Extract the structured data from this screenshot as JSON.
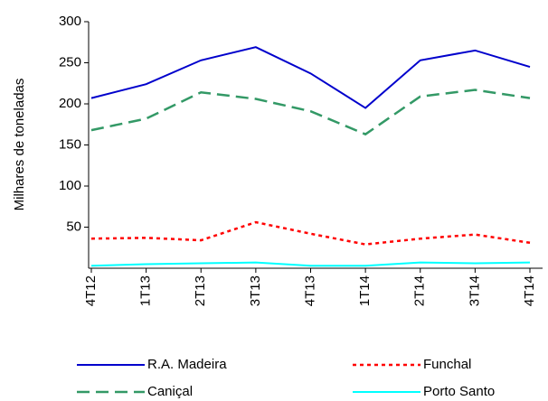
{
  "chart_data": {
    "type": "line",
    "y_label": "Milhares de toneladas",
    "categories": [
      "4T12",
      "1T13",
      "2T13",
      "3T13",
      "4T13",
      "1T14",
      "2T14",
      "3T14",
      "4T14"
    ],
    "series": [
      {
        "name": "R.A. Madeira",
        "color": "#0000cc",
        "dash": "solid",
        "values": [
          207,
          224,
          253,
          269,
          237,
          195,
          253,
          265,
          245
        ]
      },
      {
        "name": "Funchal",
        "color": "#ff0000",
        "dash": "dotted",
        "values": [
          36,
          37,
          34,
          56,
          42,
          29,
          36,
          41,
          31
        ]
      },
      {
        "name": "Caniçal",
        "color": "#339966",
        "dash": "dashed",
        "values": [
          168,
          182,
          214,
          206,
          191,
          163,
          209,
          217,
          207
        ]
      },
      {
        "name": "Porto Santo",
        "color": "#00ffff",
        "dash": "solid",
        "values": [
          3,
          5,
          6,
          7,
          3,
          3,
          7,
          6,
          7
        ]
      }
    ],
    "ylim": [
      0,
      300
    ],
    "yticks": [
      50,
      100,
      150,
      200,
      250,
      300
    ]
  }
}
